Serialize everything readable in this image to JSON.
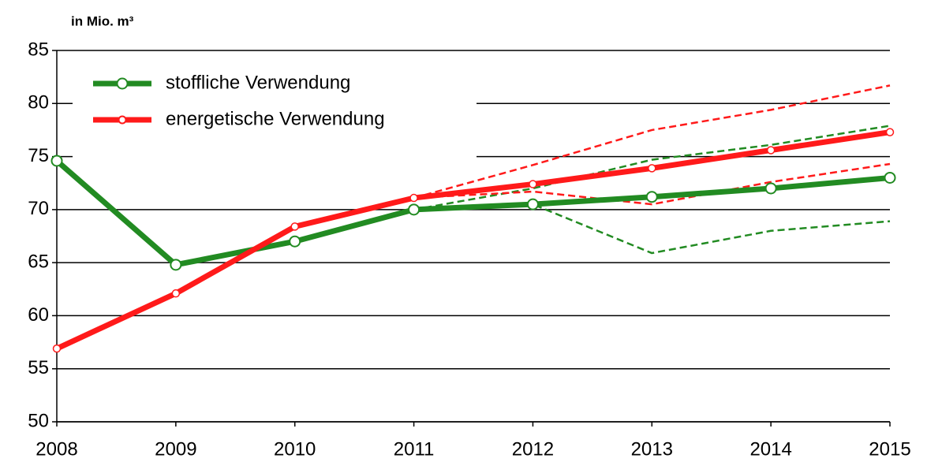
{
  "chart_data": {
    "type": "line",
    "y_label": "in Mio. m³",
    "x": [
      2008,
      2009,
      2010,
      2011,
      2012,
      2013,
      2014,
      2015
    ],
    "xlim": [
      2008,
      2015
    ],
    "xticks": [
      2008,
      2009,
      2010,
      2011,
      2012,
      2013,
      2014,
      2015
    ],
    "ylim": [
      50,
      85
    ],
    "yticks": [
      50,
      55,
      60,
      65,
      70,
      75,
      80,
      85
    ],
    "grid": true,
    "legend": "upper left",
    "series": [
      {
        "name": "stoffliche Verwendung",
        "color": "#228b22",
        "values": [
          74.6,
          64.8,
          67.0,
          70.0,
          70.5,
          71.2,
          72.0,
          73.0
        ]
      },
      {
        "name": "energetische Verwendung",
        "color": "#ff1a1a",
        "values": [
          56.9,
          62.1,
          68.4,
          71.1,
          72.4,
          73.9,
          75.6,
          77.3
        ]
      },
      {
        "color": "#228b22",
        "dashed": true,
        "values": [
          null,
          null,
          null,
          70.0,
          72.0,
          74.7,
          76.1,
          77.9
        ]
      },
      {
        "color": "#228b22",
        "dashed": true,
        "values": [
          null,
          null,
          null,
          70.0,
          70.5,
          65.9,
          68.0,
          68.9
        ]
      },
      {
        "color": "#ff1a1a",
        "dashed": true,
        "values": [
          null,
          null,
          null,
          71.1,
          74.2,
          77.5,
          79.4,
          81.7
        ]
      },
      {
        "color": "#ff1a1a",
        "dashed": true,
        "values": [
          null,
          null,
          null,
          71.1,
          71.7,
          70.5,
          72.6,
          74.3
        ]
      }
    ]
  }
}
